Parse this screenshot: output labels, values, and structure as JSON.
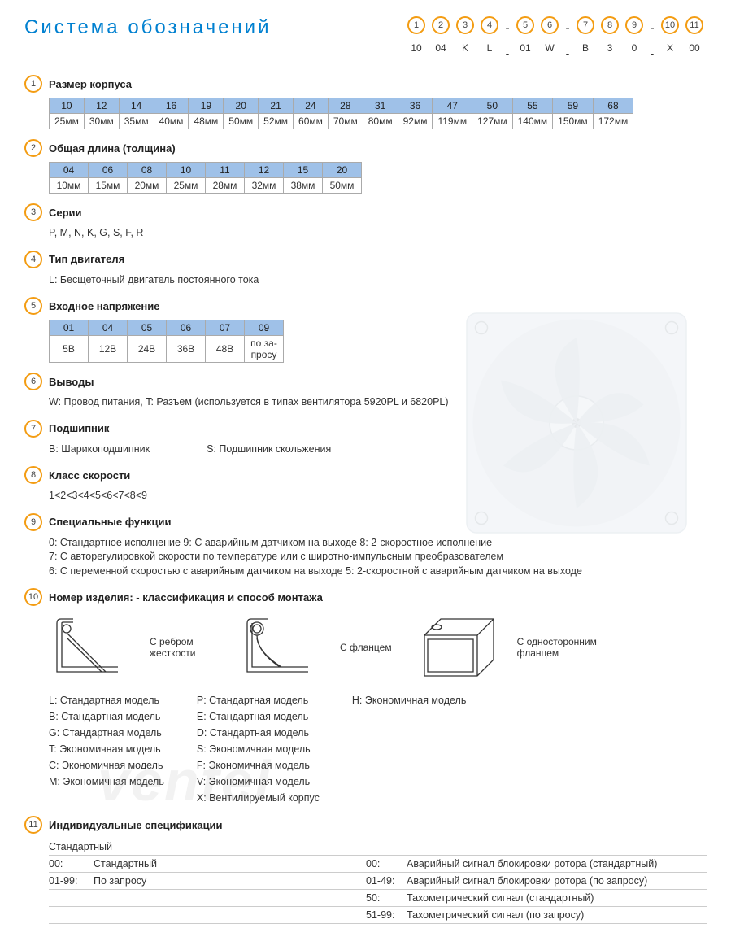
{
  "title": "Система обозначений",
  "code_positions": [
    {
      "num": "1",
      "val": "10"
    },
    {
      "num": "2",
      "val": "04"
    },
    {
      "num": "3",
      "val": "K"
    },
    {
      "num": "4",
      "val": "L"
    },
    {
      "dash": true
    },
    {
      "num": "5",
      "val": "01"
    },
    {
      "num": "6",
      "val": "W"
    },
    {
      "dash": true
    },
    {
      "num": "7",
      "val": "B"
    },
    {
      "num": "8",
      "val": "3"
    },
    {
      "num": "9",
      "val": "0"
    },
    {
      "dash": true
    },
    {
      "num": "10",
      "val": "X"
    },
    {
      "num": "11",
      "val": "00"
    }
  ],
  "colors": {
    "accent": "#0080d0",
    "circle": "#f39c12",
    "table_header": "#9fc1e8",
    "border": "#aaa"
  },
  "sec1": {
    "num": "1",
    "title": "Размер корпуса",
    "codes": [
      "10",
      "12",
      "14",
      "16",
      "19",
      "20",
      "21",
      "24",
      "28",
      "31",
      "36",
      "47",
      "50",
      "55",
      "59",
      "68"
    ],
    "vals": [
      "25мм",
      "30мм",
      "35мм",
      "40мм",
      "48мм",
      "50мм",
      "52мм",
      "60мм",
      "70мм",
      "80мм",
      "92мм",
      "119мм",
      "127мм",
      "140мм",
      "150мм",
      "172мм"
    ]
  },
  "sec2": {
    "num": "2",
    "title": "Общая длина (толщина)",
    "codes": [
      "04",
      "06",
      "08",
      "10",
      "11",
      "12",
      "15",
      "20"
    ],
    "vals": [
      "10мм",
      "15мм",
      "20мм",
      "25мм",
      "28мм",
      "32мм",
      "38мм",
      "50мм"
    ]
  },
  "sec3": {
    "num": "3",
    "title": "Серии",
    "body": "P, M, N, K, G, S, F, R"
  },
  "sec4": {
    "num": "4",
    "title": "Тип двигателя",
    "body": "L: Бесщеточный двигатель постоянного тока"
  },
  "sec5": {
    "num": "5",
    "title": "Входное напряжение",
    "codes": [
      "01",
      "04",
      "05",
      "06",
      "07",
      "09"
    ],
    "vals": [
      "5В",
      "12В",
      "24В",
      "36В",
      "48В",
      "по за-\nпросу"
    ]
  },
  "sec6": {
    "num": "6",
    "title": "Выводы",
    "body": "W: Провод питания, T: Разъем (используется в типах вентилятора  5920PL и 6820PL)"
  },
  "sec7": {
    "num": "7",
    "title": "Подшипник",
    "b1": "B: Шарикоподшипник",
    "b2": "S: Подшипник скольжения"
  },
  "sec8": {
    "num": "8",
    "title": "Класс скорости",
    "body": "1<2<3<4<5<6<7<8<9"
  },
  "sec9": {
    "num": "9",
    "title": "Специальные функции",
    "lines": [
      "0: Стандартное исполнение   9: С аварийным датчиком на выходе   8: 2-скоростное исполнение",
      "7: С авторегулировкой скорости по температуре или с широтно-импульсным преобразователем",
      "6: С переменной скоростью с аварийным датчиком на выходе   5: 2-скоростной с аварийным датчиком на выходе"
    ]
  },
  "sec10": {
    "num": "10",
    "title": "Номер изделия: - классификация  и способ монтажа",
    "mounts": [
      {
        "label": "С ребром жесткости"
      },
      {
        "label": "С фланцем"
      },
      {
        "label": "С односторонним фланцем"
      }
    ],
    "col1": [
      "L:  Стандартная модель",
      "B:  Стандартная модель",
      "G:  Стандартная модель",
      "T:  Экономичная модель",
      "C:  Экономичная модель",
      "M:  Экономичная модель"
    ],
    "col2": [
      "P:  Стандартная модель",
      "E:  Стандартная модель",
      "D:  Стандартная модель",
      "S:  Экономичная модель",
      "F:  Экономичная модель",
      "V:  Экономичная модель",
      "X:  Вентилируемый корпус"
    ],
    "col3": [
      "H:  Экономичная модель"
    ]
  },
  "sec11": {
    "num": "11",
    "title": "Индивидуальные спецификации",
    "header": "Стандартный",
    "left": [
      {
        "code": "00:",
        "text": "Стандартный"
      },
      {
        "code": "01-99:",
        "text": "По запросу"
      }
    ],
    "right": [
      {
        "code": "00:",
        "text": "Аварийный сигнал блокировки ротора (стандартный)"
      },
      {
        "code": "01-49:",
        "text": "Аварийный сигнал блокировки ротора (по запросу)"
      },
      {
        "code": "50:",
        "text": "Тахометрический сигнал (стандартный)"
      },
      {
        "code": "51-99:",
        "text": "Тахометрический сигнал (по запросу)"
      }
    ]
  },
  "watermark": "ventel"
}
